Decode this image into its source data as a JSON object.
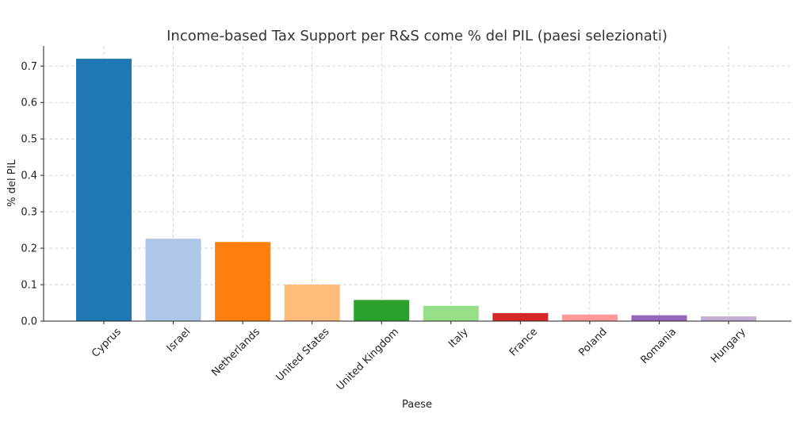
{
  "chart_data": {
    "type": "bar",
    "title": "Income-based Tax Support per R&S come % del PIL (paesi selezionati)",
    "xlabel": "Paese",
    "ylabel": "% del PIL",
    "categories": [
      "Cyprus",
      "Israel",
      "Netherlands",
      "United States",
      "United Kingdom",
      "Italy",
      "France",
      "Poland",
      "Romania",
      "Hungary"
    ],
    "values": [
      0.72,
      0.226,
      0.217,
      0.1,
      0.058,
      0.042,
      0.022,
      0.018,
      0.016,
      0.013
    ],
    "colors": [
      "#1f77b4",
      "#aec7e8",
      "#ff7f0e",
      "#ffbb78",
      "#2ca02c",
      "#98df8a",
      "#d62728",
      "#ff9896",
      "#9467bd",
      "#c5b0d5"
    ],
    "yticks": [
      "0.0",
      "0.1",
      "0.2",
      "0.3",
      "0.4",
      "0.5",
      "0.6",
      "0.7"
    ],
    "ylim": [
      0,
      0.755
    ],
    "grid": true
  }
}
